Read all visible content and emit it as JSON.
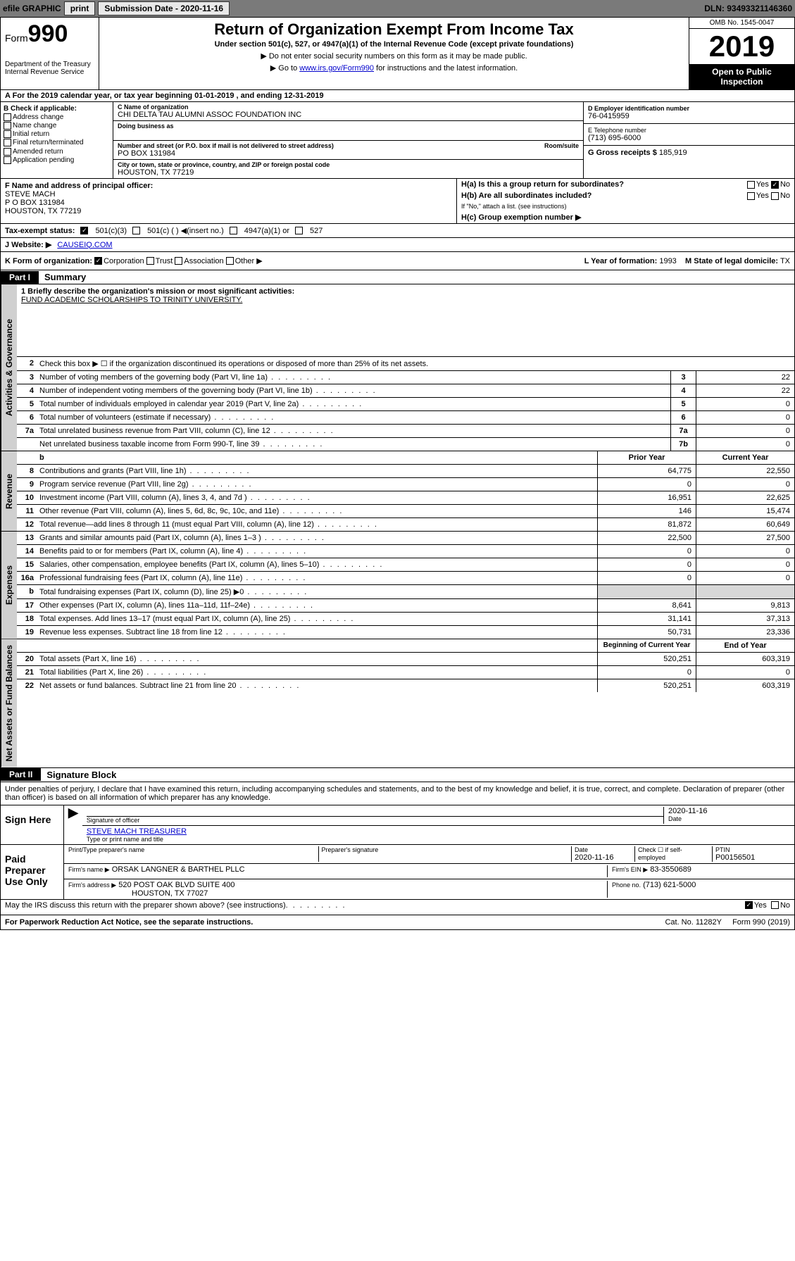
{
  "topbar": {
    "efile_label": "efile GRAPHIC",
    "print_btn": "print",
    "submission_label": "Submission Date - 2020-11-16",
    "dln": "DLN: 93493321146360"
  },
  "header": {
    "form_prefix": "Form",
    "form_number": "990",
    "dept": "Department of the Treasury",
    "irs": "Internal Revenue Service",
    "title": "Return of Organization Exempt From Income Tax",
    "subtitle": "Under section 501(c), 527, or 4947(a)(1) of the Internal Revenue Code (except private foundations)",
    "note1": "▶ Do not enter social security numbers on this form as it may be made public.",
    "note2_pre": "▶ Go to ",
    "note2_link": "www.irs.gov/Form990",
    "note2_post": " for instructions and the latest information.",
    "omb": "OMB No. 1545-0047",
    "year": "2019",
    "open": "Open to Public Inspection"
  },
  "row_a": "A For the 2019 calendar year, or tax year beginning 01-01-2019    , and ending 12-31-2019",
  "col_b": {
    "label": "B Check if applicable:",
    "opts": [
      "Address change",
      "Name change",
      "Initial return",
      "Final return/terminated",
      "Amended return",
      "Application pending"
    ]
  },
  "col_c": {
    "name_lbl": "C Name of organization",
    "name": "CHI DELTA TAU ALUMNI ASSOC FOUNDATION INC",
    "dba_lbl": "Doing business as",
    "addr_lbl": "Number and street (or P.O. box if mail is not delivered to street address)",
    "room_lbl": "Room/suite",
    "addr": "PO BOX 131984",
    "city_lbl": "City or town, state or province, country, and ZIP or foreign postal code",
    "city": "HOUSTON, TX  77219"
  },
  "col_d": {
    "ein_lbl": "D Employer identification number",
    "ein": "76-0415959",
    "tel_lbl": "E Telephone number",
    "tel": "(713) 695-6000",
    "gross_lbl": "G Gross receipts $",
    "gross": "185,919"
  },
  "section_f": {
    "lbl": "F Name and address of principal officer:",
    "name": "STEVE MACH",
    "addr1": "P O BOX 131984",
    "addr2": "HOUSTON, TX  77219"
  },
  "section_h": {
    "ha": "H(a)  Is this a group return for subordinates?",
    "hb": "H(b)  Are all subordinates included?",
    "hb_note": "If \"No,\" attach a list. (see instructions)",
    "hc": "H(c)  Group exemption number ▶",
    "yes": "Yes",
    "no": "No"
  },
  "line_i": {
    "lbl": "Tax-exempt status:",
    "opts": [
      "501(c)(3)",
      "501(c) (  ) ◀(insert no.)",
      "4947(a)(1) or",
      "527"
    ]
  },
  "line_j": {
    "lbl": "J  Website: ▶",
    "val": "CAUSEIQ.COM"
  },
  "line_k": {
    "lbl": "K Form of organization:",
    "opts": [
      "Corporation",
      "Trust",
      "Association",
      "Other ▶"
    ],
    "l_lbl": "L Year of formation:",
    "l_val": "1993",
    "m_lbl": "M State of legal domicile:",
    "m_val": "TX"
  },
  "part1": {
    "part_hdr": "Part I",
    "title": "Summary",
    "mission_lbl": "1  Briefly describe the organization's mission or most significant activities:",
    "mission": "FUND ACADEMIC SCHOLARSHIPS TO TRINITY UNIVERSITY.",
    "line2": "Check this box ▶ ☐  if the organization discontinued its operations or disposed of more than 25% of its net assets.",
    "governance_rows": [
      {
        "n": "3",
        "d": "Number of voting members of the governing body (Part VI, line 1a)",
        "b": "3",
        "v": "22"
      },
      {
        "n": "4",
        "d": "Number of independent voting members of the governing body (Part VI, line 1b)",
        "b": "4",
        "v": "22"
      },
      {
        "n": "5",
        "d": "Total number of individuals employed in calendar year 2019 (Part V, line 2a)",
        "b": "5",
        "v": "0"
      },
      {
        "n": "6",
        "d": "Total number of volunteers (estimate if necessary)",
        "b": "6",
        "v": "0"
      },
      {
        "n": "7a",
        "d": "Total unrelated business revenue from Part VIII, column (C), line 12",
        "b": "7a",
        "v": "0"
      },
      {
        "n": "",
        "d": "Net unrelated business taxable income from Form 990-T, line 39",
        "b": "7b",
        "v": "0"
      }
    ],
    "prior_hdr": "Prior Year",
    "current_hdr": "Current Year",
    "revenue_rows": [
      {
        "n": "8",
        "d": "Contributions and grants (Part VIII, line 1h)",
        "p": "64,775",
        "c": "22,550"
      },
      {
        "n": "9",
        "d": "Program service revenue (Part VIII, line 2g)",
        "p": "0",
        "c": "0"
      },
      {
        "n": "10",
        "d": "Investment income (Part VIII, column (A), lines 3, 4, and 7d )",
        "p": "16,951",
        "c": "22,625"
      },
      {
        "n": "11",
        "d": "Other revenue (Part VIII, column (A), lines 5, 6d, 8c, 9c, 10c, and 11e)",
        "p": "146",
        "c": "15,474"
      },
      {
        "n": "12",
        "d": "Total revenue—add lines 8 through 11 (must equal Part VIII, column (A), line 12)",
        "p": "81,872",
        "c": "60,649"
      }
    ],
    "expense_rows": [
      {
        "n": "13",
        "d": "Grants and similar amounts paid (Part IX, column (A), lines 1–3 )",
        "p": "22,500",
        "c": "27,500"
      },
      {
        "n": "14",
        "d": "Benefits paid to or for members (Part IX, column (A), line 4)",
        "p": "0",
        "c": "0"
      },
      {
        "n": "15",
        "d": "Salaries, other compensation, employee benefits (Part IX, column (A), lines 5–10)",
        "p": "0",
        "c": "0"
      },
      {
        "n": "16a",
        "d": "Professional fundraising fees (Part IX, column (A), line 11e)",
        "p": "0",
        "c": "0"
      },
      {
        "n": "b",
        "d": "Total fundraising expenses (Part IX, column (D), line 25) ▶0",
        "p": "",
        "c": "",
        "shade": true
      },
      {
        "n": "17",
        "d": "Other expenses (Part IX, column (A), lines 11a–11d, 11f–24e)",
        "p": "8,641",
        "c": "9,813"
      },
      {
        "n": "18",
        "d": "Total expenses. Add lines 13–17 (must equal Part IX, column (A), line 25)",
        "p": "31,141",
        "c": "37,313"
      },
      {
        "n": "19",
        "d": "Revenue less expenses. Subtract line 18 from line 12",
        "p": "50,731",
        "c": "23,336"
      }
    ],
    "begin_hdr": "Beginning of Current Year",
    "end_hdr": "End of Year",
    "net_rows": [
      {
        "n": "20",
        "d": "Total assets (Part X, line 16)",
        "p": "520,251",
        "c": "603,319"
      },
      {
        "n": "21",
        "d": "Total liabilities (Part X, line 26)",
        "p": "0",
        "c": "0"
      },
      {
        "n": "22",
        "d": "Net assets or fund balances. Subtract line 21 from line 20",
        "p": "520,251",
        "c": "603,319"
      }
    ],
    "tabs": {
      "gov": "Activities & Governance",
      "rev": "Revenue",
      "exp": "Expenses",
      "net": "Net Assets or Fund Balances"
    }
  },
  "part2": {
    "hdr": "Part II",
    "title": "Signature Block",
    "perjury": "Under penalties of perjury, I declare that I have examined this return, including accompanying schedules and statements, and to the best of my knowledge and belief, it is true, correct, and complete. Declaration of preparer (other than officer) is based on all information of which preparer has any knowledge.",
    "sign_here": "Sign Here",
    "sig_officer": "Signature of officer",
    "sig_date": "2020-11-16",
    "date_lbl": "Date",
    "officer_name": "STEVE MACH  TREASURER",
    "type_name": "Type or print name and title",
    "paid": "Paid Preparer Use Only",
    "prep_name_lbl": "Print/Type preparer's name",
    "prep_sig_lbl": "Preparer's signature",
    "prep_date_lbl": "Date",
    "prep_date": "2020-11-16",
    "check_self": "Check ☐ if self-employed",
    "ptin_lbl": "PTIN",
    "ptin": "P00156501",
    "firm_name_lbl": "Firm's name    ▶",
    "firm_name": "ORSAK LANGNER & BARTHEL PLLC",
    "firm_ein_lbl": "Firm's EIN ▶",
    "firm_ein": "83-3550689",
    "firm_addr_lbl": "Firm's address ▶",
    "firm_addr": "520 POST OAK BLVD SUITE 400",
    "firm_city": "HOUSTON, TX  77027",
    "phone_lbl": "Phone no.",
    "phone": "(713) 621-5000",
    "discuss": "May the IRS discuss this return with the preparer shown above? (see instructions)",
    "yes": "Yes",
    "no": "No"
  },
  "footer": {
    "pra": "For Paperwork Reduction Act Notice, see the separate instructions.",
    "cat": "Cat. No. 11282Y",
    "form": "Form 990 (2019)"
  }
}
